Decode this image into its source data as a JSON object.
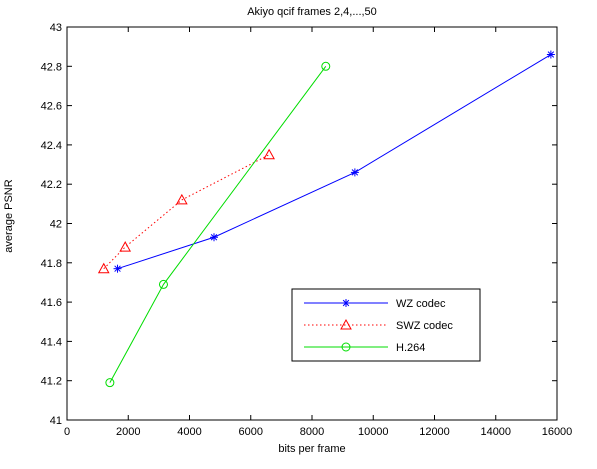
{
  "chart_data": {
    "type": "line",
    "title": "Akiyo qcif frames 2,4,...,50",
    "xlabel": "bits per frame",
    "ylabel": "average PSNR",
    "xlim": [
      0,
      16000
    ],
    "ylim": [
      41,
      43
    ],
    "xticks": [
      0,
      2000,
      4000,
      6000,
      8000,
      10000,
      12000,
      14000,
      16000
    ],
    "yticks": [
      41,
      41.2,
      41.4,
      41.6,
      41.8,
      42,
      42.2,
      42.4,
      42.6,
      42.8,
      43
    ],
    "grid": false,
    "legend_position": "bottom-right",
    "series": [
      {
        "name": "WZ codec",
        "color": "#0000ff",
        "line_style": "solid",
        "marker": "asterisk",
        "x": [
          1650,
          4800,
          9400,
          15800
        ],
        "y": [
          41.77,
          41.93,
          42.26,
          42.86
        ]
      },
      {
        "name": "SWZ codec",
        "color": "#ff0000",
        "line_style": "dotted",
        "marker": "triangle",
        "x": [
          1200,
          1900,
          3750,
          6600
        ],
        "y": [
          41.77,
          41.88,
          42.12,
          42.35
        ]
      },
      {
        "name": "H.264",
        "color": "#00dd00",
        "line_style": "solid",
        "marker": "circle",
        "x": [
          1400,
          3150,
          8450
        ],
        "y": [
          41.19,
          41.69,
          42.8
        ]
      }
    ]
  }
}
